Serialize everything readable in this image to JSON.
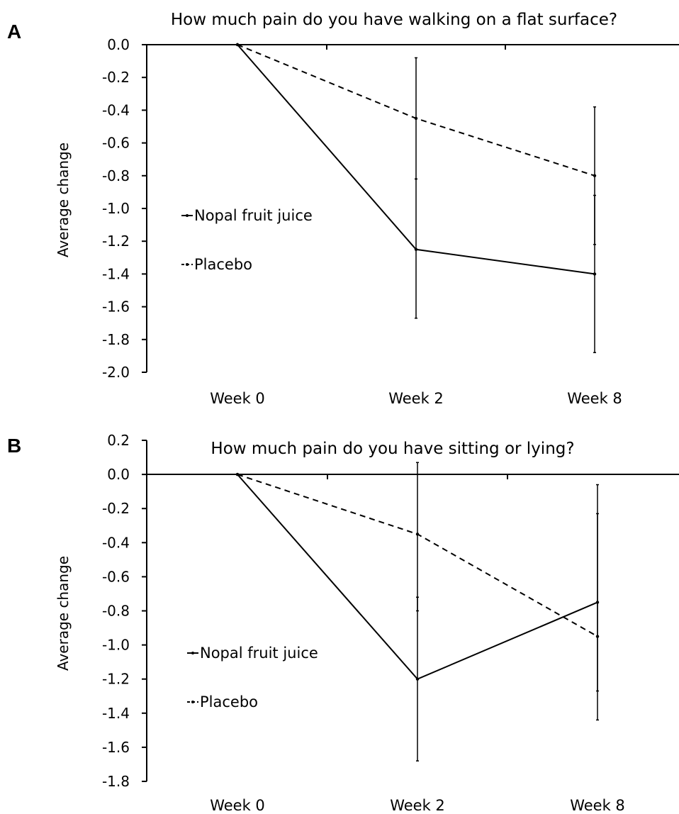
{
  "chart_data": [
    {
      "type": "line",
      "panel_label": "A",
      "title": "How much pain do you have walking on a flat surface?",
      "xlabel": "",
      "ylabel": "Average change",
      "categories": [
        "Week 0",
        "Week 2",
        "Week 8"
      ],
      "ylim": [
        -2.0,
        0.0
      ],
      "yticks": [
        "0.0",
        "-0.2",
        "-0.4",
        "-0.6",
        "-0.8",
        "-1.0",
        "-1.2",
        "-1.4",
        "-1.6",
        "-1.8",
        "-2.0"
      ],
      "legend_position": "center-left",
      "series": [
        {
          "name": "Nopal fruit juice",
          "line_style": "solid",
          "values": [
            0.0,
            -1.25,
            -1.4
          ],
          "error_low": [
            0.0,
            -1.67,
            -1.88
          ],
          "error_high": [
            0.0,
            -0.82,
            -0.92
          ]
        },
        {
          "name": "Placebo",
          "line_style": "dashed",
          "values": [
            0.0,
            -0.45,
            -0.8
          ],
          "error_low": [
            0.0,
            -0.82,
            -1.22
          ],
          "error_high": [
            0.0,
            -0.08,
            -0.38
          ]
        }
      ]
    },
    {
      "type": "line",
      "panel_label": "B",
      "title": "How much pain do you have sitting or lying?",
      "xlabel": "",
      "ylabel": "Average change",
      "categories": [
        "Week 0",
        "Week 2",
        "Week 8"
      ],
      "ylim": [
        -1.8,
        0.2
      ],
      "yticks": [
        "0.2",
        "0.0",
        "-0.2",
        "-0.4",
        "-0.6",
        "-0.8",
        "-1.0",
        "-1.2",
        "-1.4",
        "-1.6",
        "-1.8"
      ],
      "legend_position": "lower-left",
      "series": [
        {
          "name": "Nopal fruit juice",
          "line_style": "solid",
          "values": [
            0.0,
            -1.2,
            -0.75
          ],
          "error_low": [
            0.0,
            -1.68,
            -1.27
          ],
          "error_high": [
            0.0,
            -0.72,
            -0.23
          ]
        },
        {
          "name": "Placebo",
          "line_style": "dashed",
          "values": [
            0.0,
            -0.35,
            -0.95
          ],
          "error_low": [
            0.0,
            -0.8,
            -1.44
          ],
          "error_high": [
            0.0,
            0.07,
            -0.06
          ]
        }
      ]
    }
  ]
}
